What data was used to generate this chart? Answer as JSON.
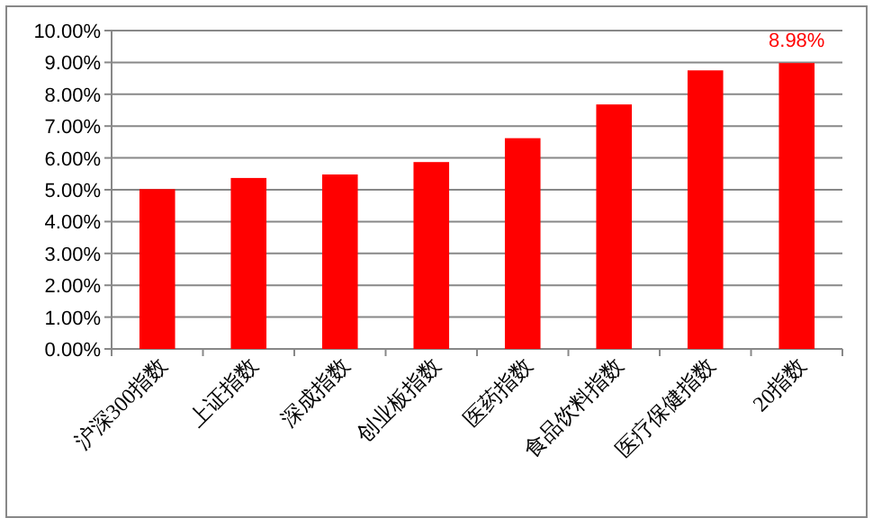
{
  "chart_data": {
    "type": "bar",
    "categories": [
      "沪深300指数",
      "上证指数",
      "深成指数",
      "创业板指数",
      "医药指数",
      "食品饮料指数",
      "医疗保健指数",
      "20指数"
    ],
    "values": [
      5.02,
      5.37,
      5.48,
      5.87,
      6.62,
      7.68,
      8.75,
      8.98
    ],
    "value_labels": [
      null,
      null,
      null,
      null,
      null,
      null,
      null,
      "8.98%"
    ],
    "color": "#ff0000",
    "ylim": [
      0,
      10
    ],
    "yticks": [
      {
        "value": 0,
        "label": "0.00%"
      },
      {
        "value": 1,
        "label": "1.00%"
      },
      {
        "value": 2,
        "label": "2.00%"
      },
      {
        "value": 3,
        "label": "3.00%"
      },
      {
        "value": 4,
        "label": "4.00%"
      },
      {
        "value": 5,
        "label": "5.00%"
      },
      {
        "value": 6,
        "label": "6.00%"
      },
      {
        "value": 7,
        "label": "7.00%"
      },
      {
        "value": 8,
        "label": "8.00%"
      },
      {
        "value": 9,
        "label": "9.00%"
      },
      {
        "value": 10,
        "label": "10.00%"
      }
    ],
    "grid": "y"
  }
}
